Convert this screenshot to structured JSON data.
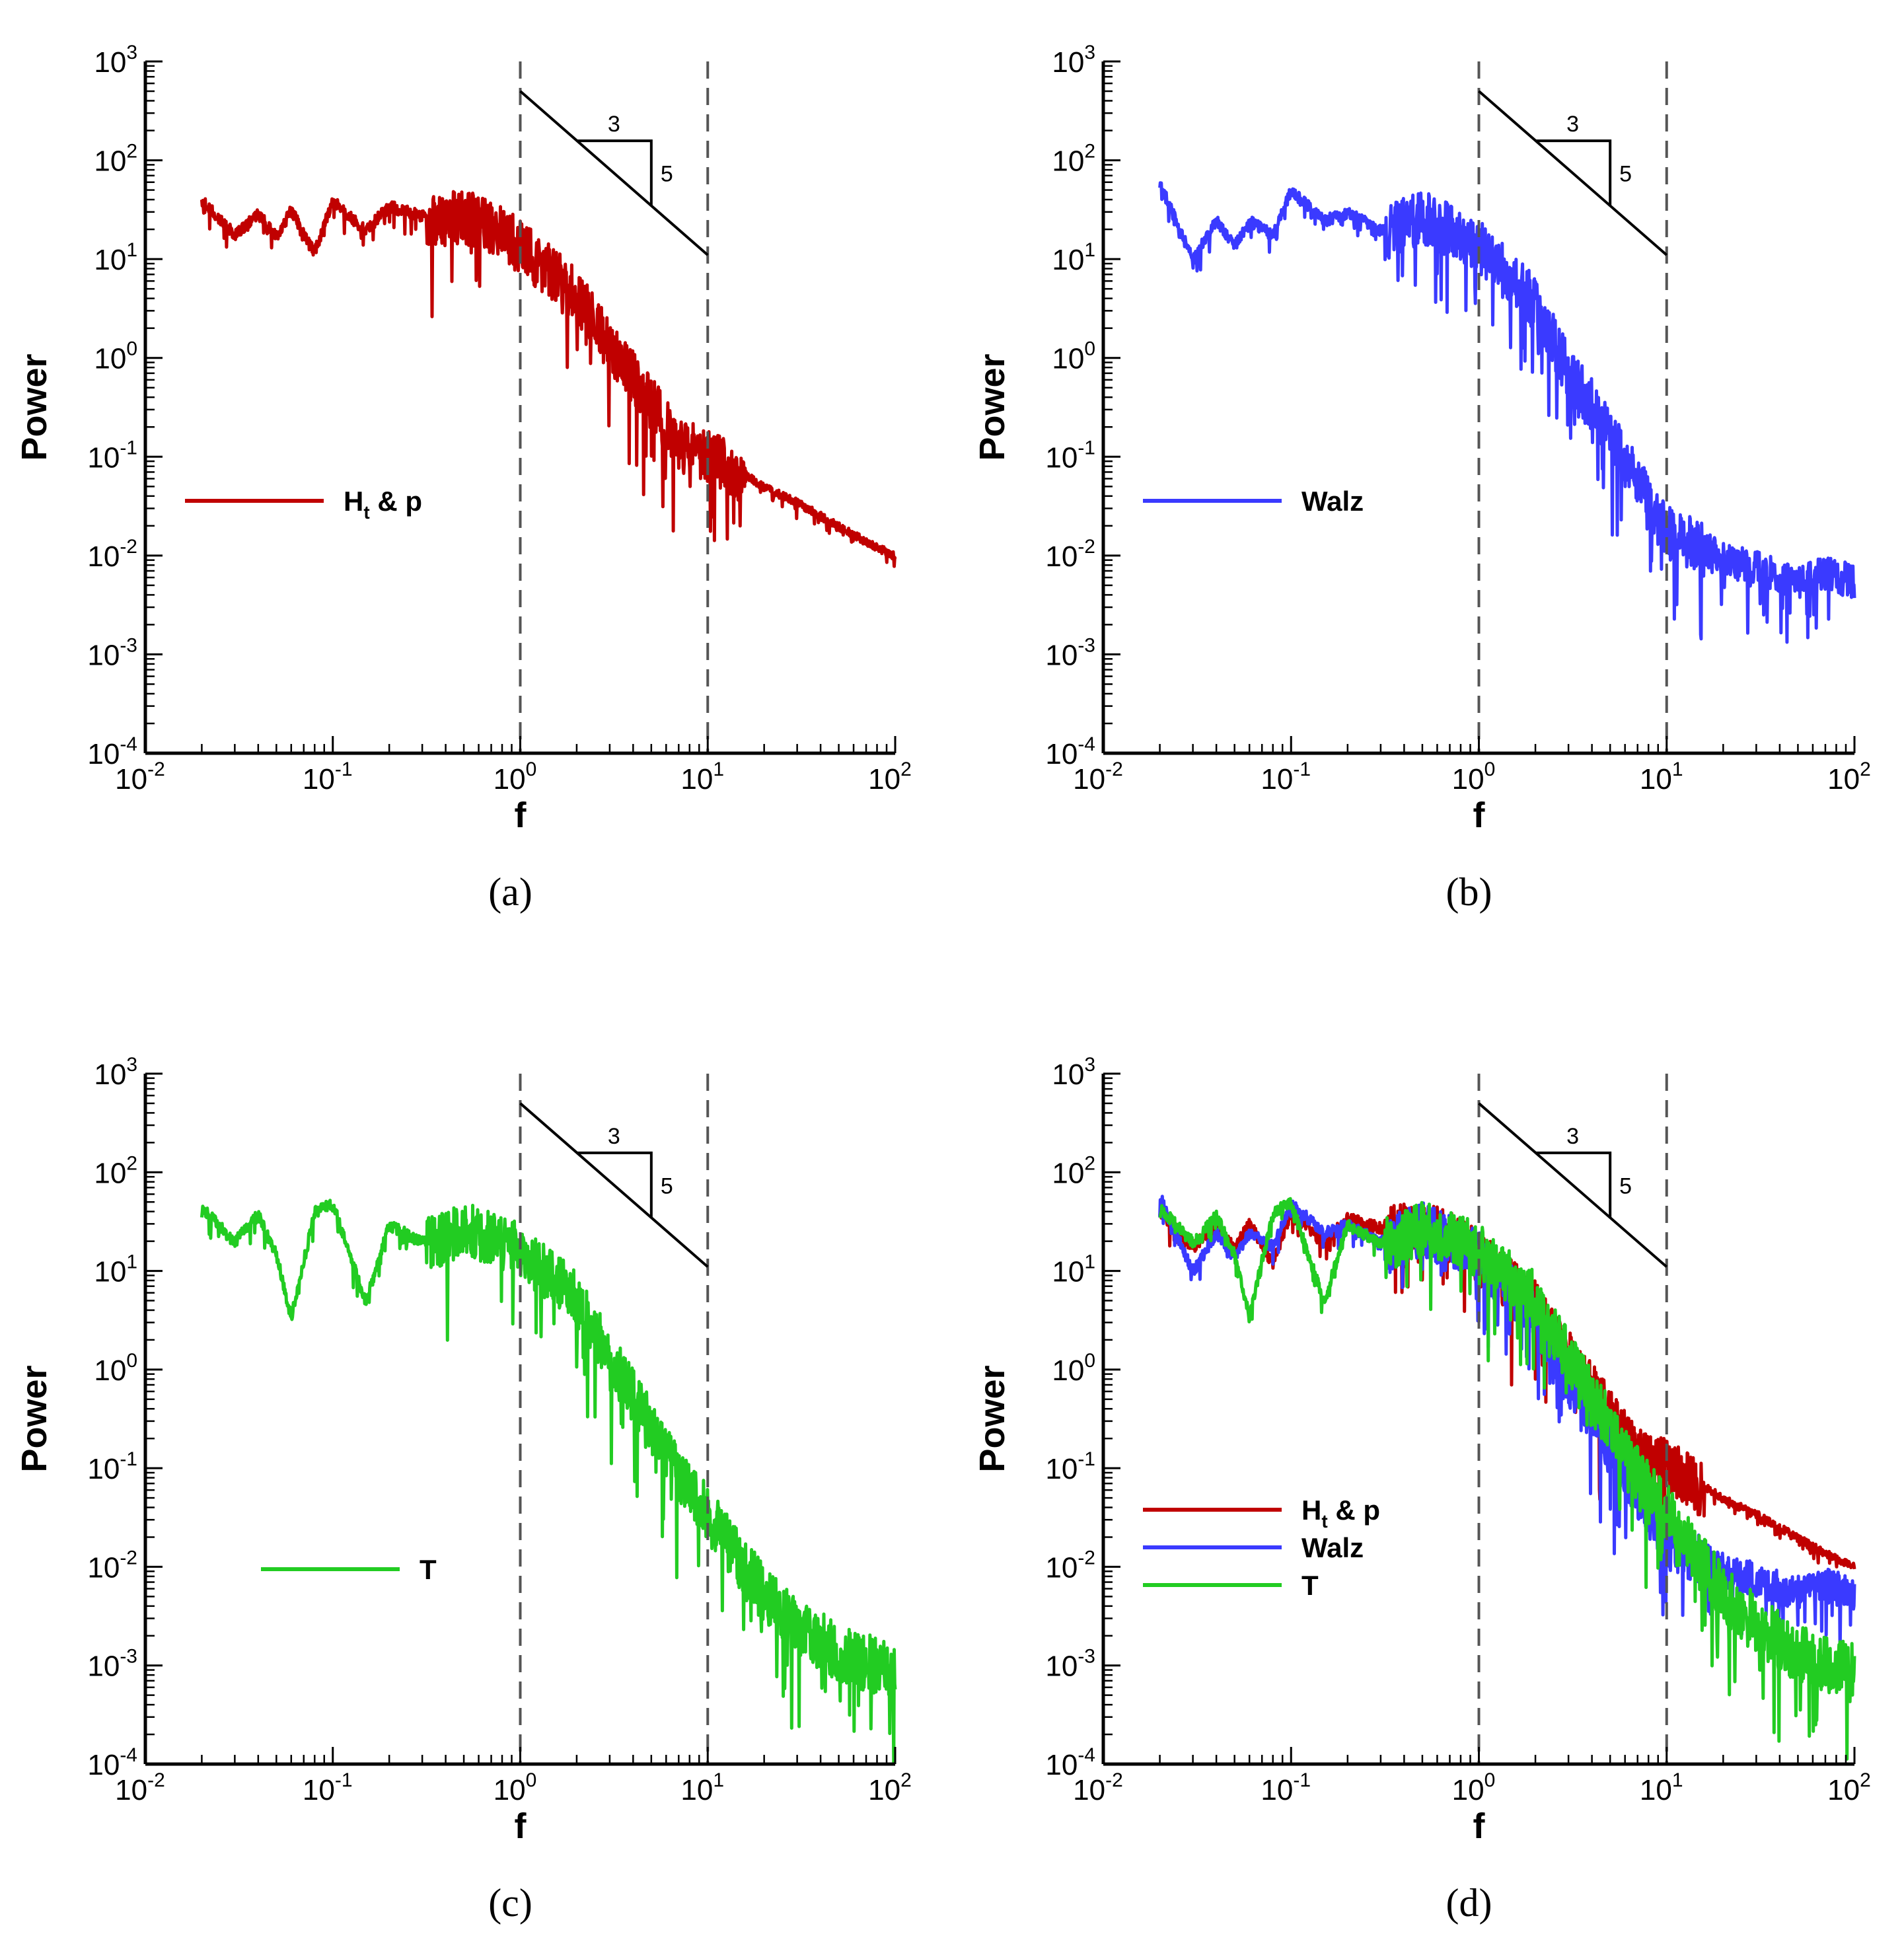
{
  "figure": {
    "panels": [
      {
        "id": "a",
        "caption": "(a)",
        "series_names": [
          "Ht & p"
        ]
      },
      {
        "id": "b",
        "caption": "(b)",
        "series_names": [
          "Walz"
        ]
      },
      {
        "id": "c",
        "caption": "(c)",
        "series_names": [
          "T"
        ]
      },
      {
        "id": "d",
        "caption": "(d)",
        "series_names": [
          "Ht & p",
          "Walz",
          "T"
        ]
      }
    ]
  },
  "chart_data": [
    {
      "type": "line",
      "panel": "a",
      "caption": "(a)",
      "xlabel": "f",
      "ylabel": "Power",
      "xscale": "log",
      "yscale": "log",
      "xlim": [
        0.01,
        100
      ],
      "ylim": [
        0.0001,
        1000
      ],
      "x_tick_labels": [
        "10-2",
        "10-1",
        "100",
        "101",
        "102"
      ],
      "y_tick_labels": [
        "10-4",
        "10-3",
        "10-2",
        "10-1",
        "100",
        "101",
        "102",
        "103"
      ],
      "reference_lines_f": [
        1,
        10
      ],
      "slope_triangle": {
        "run_label": "3",
        "rise_label": "5",
        "slope": -1.6667,
        "from": [
          1,
          500
        ],
        "to": [
          10,
          11
        ]
      },
      "legend": {
        "position": "middle-left",
        "entries": [
          {
            "name": "H",
            "subscript": "t",
            "suffix": " & p",
            "color": "#c00000"
          }
        ]
      },
      "series": [
        {
          "name": "Ht & p",
          "color": "#c00000",
          "x": [
            0.02,
            0.03,
            0.04,
            0.05,
            0.06,
            0.08,
            0.1,
            0.15,
            0.2,
            0.3,
            0.5,
            0.7,
            1,
            2,
            3,
            5,
            7,
            10,
            20,
            30,
            50,
            70,
            100
          ],
          "y": [
            40,
            18,
            30,
            17,
            32,
            12,
            40,
            20,
            35,
            28,
            30,
            25,
            15,
            5,
            1.5,
            0.4,
            0.15,
            0.12,
            0.05,
            0.035,
            0.02,
            0.014,
            0.01
          ]
        }
      ]
    },
    {
      "type": "line",
      "panel": "b",
      "caption": "(b)",
      "xlabel": "f",
      "ylabel": "Power",
      "xscale": "log",
      "yscale": "log",
      "xlim": [
        0.01,
        100
      ],
      "ylim": [
        0.0001,
        1000
      ],
      "x_tick_labels": [
        "10-2",
        "10-1",
        "100",
        "101",
        "102"
      ],
      "y_tick_labels": [
        "10-4",
        "10-3",
        "10-2",
        "10-1",
        "100",
        "101",
        "102",
        "103"
      ],
      "reference_lines_f": [
        1,
        10
      ],
      "slope_triangle": {
        "run_label": "3",
        "rise_label": "5",
        "slope": -1.6667,
        "from": [
          1,
          500
        ],
        "to": [
          10,
          11
        ]
      },
      "legend": {
        "position": "middle-left",
        "entries": [
          {
            "name": "Walz",
            "subscript": "",
            "suffix": "",
            "color": "#3a3aff"
          }
        ]
      },
      "series": [
        {
          "name": "Walz",
          "color": "#3a3aff",
          "x": [
            0.02,
            0.03,
            0.04,
            0.05,
            0.06,
            0.08,
            0.1,
            0.15,
            0.2,
            0.3,
            0.5,
            0.7,
            1,
            2,
            3,
            5,
            7,
            10,
            20,
            30,
            50,
            70,
            100
          ],
          "y": [
            60,
            10,
            25,
            14,
            25,
            18,
            50,
            25,
            30,
            20,
            30,
            22,
            15,
            4,
            0.8,
            0.2,
            0.06,
            0.02,
            0.01,
            0.008,
            0.006,
            0.007,
            0.006
          ]
        }
      ]
    },
    {
      "type": "line",
      "panel": "c",
      "caption": "(c)",
      "xlabel": "f",
      "ylabel": "Power",
      "xscale": "log",
      "yscale": "log",
      "xlim": [
        0.01,
        100
      ],
      "ylim": [
        0.0001,
        1000
      ],
      "x_tick_labels": [
        "10-2",
        "10-1",
        "100",
        "101",
        "102"
      ],
      "y_tick_labels": [
        "10-4",
        "10-3",
        "10-2",
        "10-1",
        "100",
        "101",
        "102",
        "103"
      ],
      "reference_lines_f": [
        1,
        10
      ],
      "slope_triangle": {
        "run_label": "3",
        "rise_label": "5",
        "slope": -1.6667,
        "from": [
          1,
          500
        ],
        "to": [
          10,
          11
        ]
      },
      "legend": {
        "position": "middle-left",
        "entries": [
          {
            "name": "T",
            "subscript": "",
            "suffix": "",
            "color": "#22cc22"
          }
        ]
      },
      "series": [
        {
          "name": "T",
          "color": "#22cc22",
          "x": [
            0.02,
            0.03,
            0.04,
            0.05,
            0.06,
            0.08,
            0.1,
            0.15,
            0.2,
            0.3,
            0.5,
            0.7,
            1,
            2,
            3,
            5,
            7,
            10,
            20,
            30,
            50,
            70,
            100
          ],
          "y": [
            45,
            20,
            38,
            15,
            3.5,
            40,
            50,
            5,
            30,
            20,
            30,
            25,
            18,
            6,
            1.5,
            0.3,
            0.1,
            0.04,
            0.006,
            0.003,
            0.0015,
            0.0012,
            0.001
          ]
        }
      ]
    },
    {
      "type": "line",
      "panel": "d",
      "caption": "(d)",
      "xlabel": "f",
      "ylabel": "Power",
      "xscale": "log",
      "yscale": "log",
      "xlim": [
        0.01,
        100
      ],
      "ylim": [
        0.0001,
        1000
      ],
      "x_tick_labels": [
        "10-2",
        "10-1",
        "100",
        "101",
        "102"
      ],
      "y_tick_labels": [
        "10-4",
        "10-3",
        "10-2",
        "10-1",
        "100",
        "101",
        "102",
        "103"
      ],
      "reference_lines_f": [
        1,
        10
      ],
      "slope_triangle": {
        "run_label": "3",
        "rise_label": "5",
        "slope": -1.6667,
        "from": [
          1,
          500
        ],
        "to": [
          10,
          11
        ]
      },
      "legend": {
        "position": "bottom-left",
        "entries": [
          {
            "name": "H",
            "subscript": "t",
            "suffix": " & p",
            "color": "#c00000"
          },
          {
            "name": "Walz",
            "subscript": "",
            "suffix": "",
            "color": "#3a3aff"
          },
          {
            "name": "T",
            "subscript": "",
            "suffix": "",
            "color": "#22cc22"
          }
        ]
      },
      "series": [
        {
          "name": "Ht & p",
          "color": "#c00000",
          "x": [
            0.02,
            0.03,
            0.04,
            0.05,
            0.06,
            0.08,
            0.1,
            0.15,
            0.2,
            0.3,
            0.5,
            0.7,
            1,
            2,
            3,
            5,
            7,
            10,
            20,
            30,
            50,
            70,
            100
          ],
          "y": [
            40,
            18,
            30,
            17,
            32,
            12,
            40,
            20,
            35,
            28,
            30,
            25,
            15,
            5,
            1.5,
            0.4,
            0.15,
            0.12,
            0.05,
            0.035,
            0.02,
            0.014,
            0.01
          ]
        },
        {
          "name": "Walz",
          "color": "#3a3aff",
          "x": [
            0.02,
            0.03,
            0.04,
            0.05,
            0.06,
            0.08,
            0.1,
            0.15,
            0.2,
            0.3,
            0.5,
            0.7,
            1,
            2,
            3,
            5,
            7,
            10,
            20,
            30,
            50,
            70,
            100
          ],
          "y": [
            60,
            10,
            25,
            14,
            25,
            18,
            50,
            25,
            30,
            20,
            30,
            22,
            15,
            4,
            0.8,
            0.2,
            0.06,
            0.02,
            0.01,
            0.008,
            0.006,
            0.007,
            0.006
          ]
        },
        {
          "name": "T",
          "color": "#22cc22",
          "x": [
            0.02,
            0.03,
            0.04,
            0.05,
            0.06,
            0.08,
            0.1,
            0.15,
            0.2,
            0.3,
            0.5,
            0.7,
            1,
            2,
            3,
            5,
            7,
            10,
            20,
            30,
            50,
            70,
            100
          ],
          "y": [
            45,
            20,
            38,
            15,
            3.5,
            40,
            50,
            5,
            30,
            20,
            30,
            25,
            18,
            6,
            1.5,
            0.3,
            0.1,
            0.04,
            0.006,
            0.003,
            0.0015,
            0.0012,
            0.001
          ]
        }
      ]
    }
  ]
}
